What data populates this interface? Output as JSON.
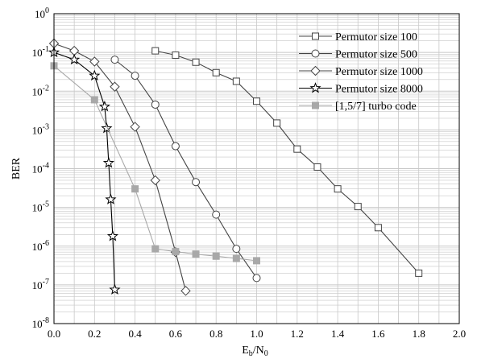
{
  "chart_data": {
    "type": "line",
    "xlabel": "E",
    "xlabel_sub": "b",
    "xlabel_mid": "/N",
    "xlabel_sub2": "0",
    "ylabel": "BER",
    "y_scale": "log",
    "xlim": [
      0.0,
      2.0
    ],
    "ylim": [
      1e-08,
      1
    ],
    "grid": true,
    "legend_position": "top-right",
    "x_ticks": [
      "0.0",
      "0.2",
      "0.4",
      "0.6",
      "0.8",
      "1.0",
      "1.2",
      "1.4",
      "1.6",
      "1.8",
      "2.0"
    ],
    "y_tick_base": "10",
    "y_tick_exponents": [
      "0",
      "-1",
      "-2",
      "-3",
      "-4",
      "-5",
      "-6",
      "-7",
      "-8"
    ],
    "series": [
      {
        "name": "Permutor size 100",
        "marker": "square",
        "color": "#444444",
        "x": [
          0.5,
          0.6,
          0.7,
          0.8,
          0.9,
          1.0,
          1.1,
          1.2,
          1.3,
          1.4,
          1.5,
          1.6,
          1.8
        ],
        "y": [
          0.11,
          0.085,
          0.056,
          0.03,
          0.018,
          0.0055,
          0.0015,
          0.00032,
          0.00011,
          3e-05,
          1.05e-05,
          3e-06,
          2e-07
        ]
      },
      {
        "name": "Permutor size 500",
        "marker": "circle",
        "color": "#444444",
        "x": [
          0.3,
          0.4,
          0.5,
          0.6,
          0.7,
          0.8,
          0.9,
          1.0
        ],
        "y": [
          0.065,
          0.025,
          0.0045,
          0.00038,
          4.5e-05,
          6.5e-06,
          8.5e-07,
          1.5e-07
        ]
      },
      {
        "name": "Permutor size 1000",
        "marker": "diamond",
        "color": "#444444",
        "x": [
          0.0,
          0.1,
          0.2,
          0.3,
          0.4,
          0.5,
          0.6,
          0.65
        ],
        "y": [
          0.17,
          0.11,
          0.058,
          0.013,
          0.0012,
          5e-05,
          7e-07,
          7e-08
        ]
      },
      {
        "name": "Permutor size 8000",
        "marker": "star",
        "color": "#000000",
        "x": [
          0.0,
          0.1,
          0.2,
          0.25,
          0.26,
          0.27,
          0.28,
          0.29,
          0.3
        ],
        "y": [
          0.1,
          0.065,
          0.025,
          0.004,
          0.0011,
          0.00014,
          1.6e-05,
          1.8e-06,
          7.5e-08
        ]
      },
      {
        "name": "[1,5/7] turbo code",
        "marker": "filled-square",
        "color": "#a8a8a8",
        "x": [
          0.0,
          0.2,
          0.4,
          0.5,
          0.6,
          0.7,
          0.8,
          0.9,
          1.0
        ],
        "y": [
          0.045,
          0.006,
          3e-05,
          8.5e-07,
          7.2e-07,
          6.2e-07,
          5.5e-07,
          4.8e-07,
          4.2e-07
        ]
      }
    ]
  }
}
